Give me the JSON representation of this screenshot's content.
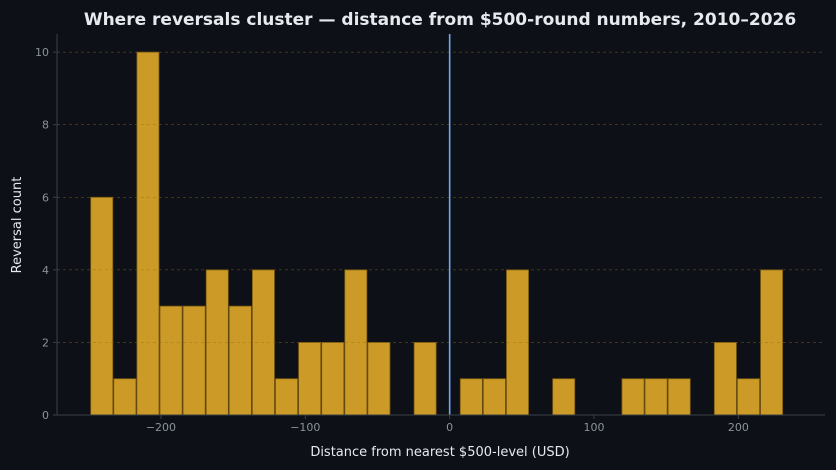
{
  "chart_data": {
    "type": "bar",
    "title": "Where reversals cluster — distance from $500-round numbers, 2010–2026",
    "xlabel": "Distance from nearest $500-level (USD)",
    "ylabel": "Reversal count",
    "bin_width": 16,
    "bin_starts": [
      -249,
      -233,
      -217,
      -201,
      -185,
      -169,
      -153,
      -137,
      -121,
      -105,
      -89,
      -73,
      -57,
      -41,
      -25,
      -9,
      7,
      23,
      39,
      55,
      71,
      87,
      103,
      119,
      135,
      151,
      167,
      183,
      199,
      215
    ],
    "values": [
      6,
      1,
      10,
      3,
      3,
      4,
      3,
      4,
      1,
      2,
      2,
      4,
      2,
      0,
      2,
      0,
      1,
      1,
      4,
      0,
      1,
      0,
      0,
      1,
      1,
      1,
      0,
      2,
      1,
      4
    ],
    "xlim": [
      -272,
      260
    ],
    "ylim": [
      0,
      10.5
    ],
    "xticks": [
      -200,
      -100,
      0,
      100,
      200
    ],
    "xtick_labels": [
      "−200",
      "−100",
      "0",
      "100",
      "200"
    ],
    "yticks": [
      0,
      2,
      4,
      6,
      8,
      10
    ],
    "ytick_labels": [
      "0",
      "2",
      "4",
      "6",
      "8",
      "10"
    ],
    "reference_line_x": 0,
    "grid": "y-dashed",
    "colors": {
      "background": "#0d1117",
      "bar_fill": "#cc9a26",
      "bar_edge": "#7a5a12",
      "reference_line": "#6fa8f0",
      "grid": "#7a5a12",
      "axis": "#3a3f47",
      "text": "#e6e9ee",
      "tick_text": "#8b929b"
    }
  }
}
